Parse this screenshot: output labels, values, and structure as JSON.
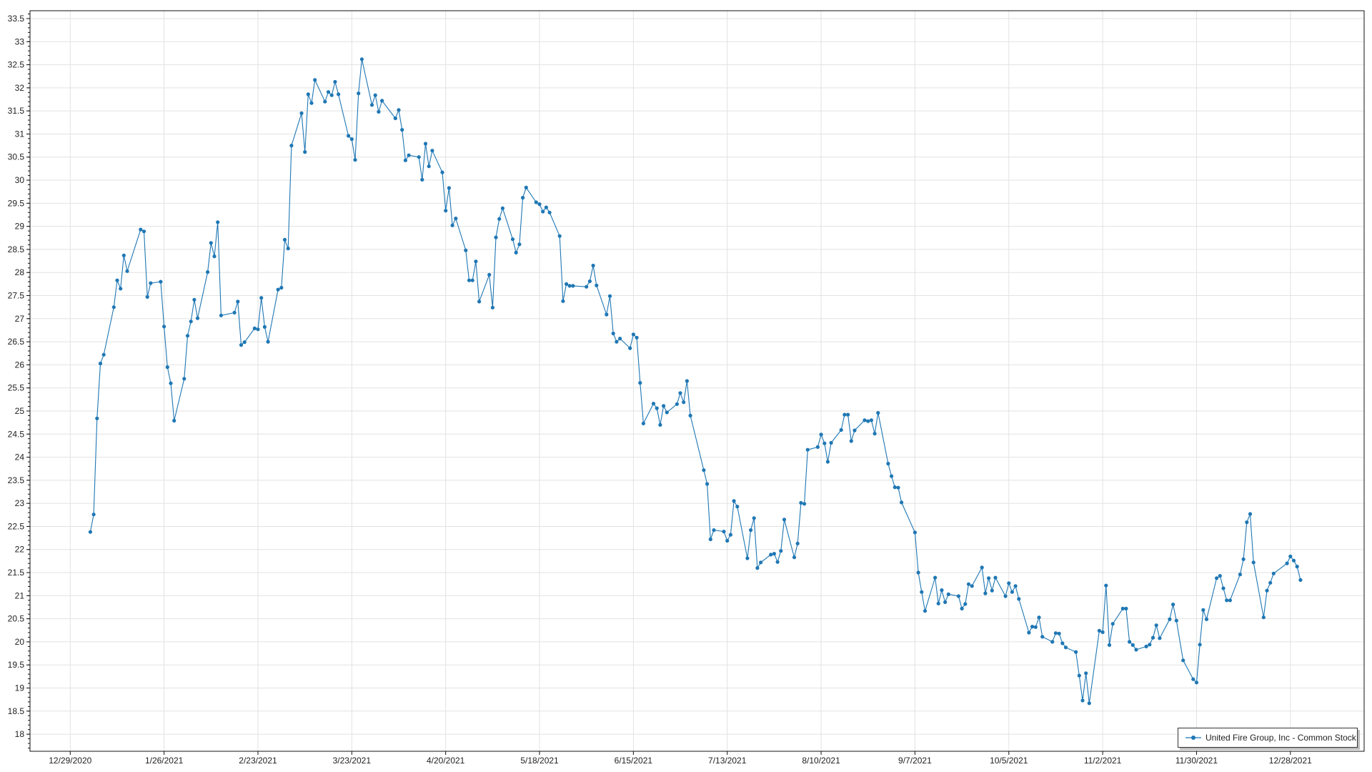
{
  "chart_data": {
    "type": "line",
    "title": "",
    "xlabel": "",
    "ylabel": "",
    "xlim": [
      "2020-12-17",
      "2022-01-19"
    ],
    "ylim": [
      17.63,
      33.67
    ],
    "grid": true,
    "legend_placement": "bottom-right",
    "line_color": "#1f77b4",
    "x_tick_labels": [
      "12/29/2020",
      "1/26/2021",
      "2/23/2021",
      "3/23/2021",
      "4/20/2021",
      "5/18/2021",
      "6/15/2021",
      "7/13/2021",
      "8/10/2021",
      "9/7/2021",
      "10/5/2021",
      "11/2/2021",
      "11/30/2021",
      "12/28/2021"
    ],
    "y_tick_labels": [
      "18",
      "18.5",
      "19",
      "19.5",
      "20",
      "20.5",
      "21",
      "21.5",
      "22",
      "22.5",
      "23",
      "23.5",
      "24",
      "24.5",
      "25",
      "25.5",
      "26",
      "26.5",
      "27",
      "27.5",
      "28",
      "28.5",
      "29",
      "29.5",
      "30",
      "30.5",
      "31",
      "31.5",
      "32",
      "32.5",
      "33",
      "33.5"
    ],
    "series": [
      {
        "name": "United Fire Group, Inc - Common Stock",
        "x": [
          "2021-01-04",
          "2021-01-05",
          "2021-01-06",
          "2021-01-07",
          "2021-01-08",
          "2021-01-11",
          "2021-01-12",
          "2021-01-13",
          "2021-01-14",
          "2021-01-15",
          "2021-01-19",
          "2021-01-20",
          "2021-01-21",
          "2021-01-22",
          "2021-01-25",
          "2021-01-26",
          "2021-01-27",
          "2021-01-28",
          "2021-01-29",
          "2021-02-01",
          "2021-02-02",
          "2021-02-03",
          "2021-02-04",
          "2021-02-05",
          "2021-02-08",
          "2021-02-09",
          "2021-02-10",
          "2021-02-11",
          "2021-02-12",
          "2021-02-16",
          "2021-02-17",
          "2021-02-18",
          "2021-02-19",
          "2021-02-22",
          "2021-02-23",
          "2021-02-24",
          "2021-02-25",
          "2021-02-26",
          "2021-03-01",
          "2021-03-02",
          "2021-03-03",
          "2021-03-04",
          "2021-03-05",
          "2021-03-08",
          "2021-03-09",
          "2021-03-10",
          "2021-03-11",
          "2021-03-12",
          "2021-03-15",
          "2021-03-16",
          "2021-03-17",
          "2021-03-18",
          "2021-03-19",
          "2021-03-22",
          "2021-03-23",
          "2021-03-24",
          "2021-03-25",
          "2021-03-26",
          "2021-03-29",
          "2021-03-30",
          "2021-03-31",
          "2021-04-01",
          "2021-04-05",
          "2021-04-06",
          "2021-04-07",
          "2021-04-08",
          "2021-04-09",
          "2021-04-12",
          "2021-04-13",
          "2021-04-14",
          "2021-04-15",
          "2021-04-16",
          "2021-04-19",
          "2021-04-20",
          "2021-04-21",
          "2021-04-22",
          "2021-04-23",
          "2021-04-26",
          "2021-04-27",
          "2021-04-28",
          "2021-04-29",
          "2021-04-30",
          "2021-05-03",
          "2021-05-04",
          "2021-05-05",
          "2021-05-06",
          "2021-05-07",
          "2021-05-10",
          "2021-05-11",
          "2021-05-12",
          "2021-05-13",
          "2021-05-14",
          "2021-05-17",
          "2021-05-18",
          "2021-05-19",
          "2021-05-20",
          "2021-05-21",
          "2021-05-24",
          "2021-05-25",
          "2021-05-26",
          "2021-05-27",
          "2021-05-28",
          "2021-06-01",
          "2021-06-02",
          "2021-06-03",
          "2021-06-04",
          "2021-06-07",
          "2021-06-08",
          "2021-06-09",
          "2021-06-10",
          "2021-06-11",
          "2021-06-14",
          "2021-06-15",
          "2021-06-16",
          "2021-06-17",
          "2021-06-18",
          "2021-06-21",
          "2021-06-22",
          "2021-06-23",
          "2021-06-24",
          "2021-06-25",
          "2021-06-28",
          "2021-06-29",
          "2021-06-30",
          "2021-07-01",
          "2021-07-02",
          "2021-07-06",
          "2021-07-07",
          "2021-07-08",
          "2021-07-09",
          "2021-07-12",
          "2021-07-13",
          "2021-07-14",
          "2021-07-15",
          "2021-07-16",
          "2021-07-19",
          "2021-07-20",
          "2021-07-21",
          "2021-07-22",
          "2021-07-23",
          "2021-07-26",
          "2021-07-27",
          "2021-07-28",
          "2021-07-29",
          "2021-07-30",
          "2021-08-02",
          "2021-08-03",
          "2021-08-04",
          "2021-08-05",
          "2021-08-06",
          "2021-08-09",
          "2021-08-10",
          "2021-08-11",
          "2021-08-12",
          "2021-08-13",
          "2021-08-16",
          "2021-08-17",
          "2021-08-18",
          "2021-08-19",
          "2021-08-20",
          "2021-08-23",
          "2021-08-24",
          "2021-08-25",
          "2021-08-26",
          "2021-08-27",
          "2021-08-30",
          "2021-08-31",
          "2021-09-01",
          "2021-09-02",
          "2021-09-03",
          "2021-09-07",
          "2021-09-08",
          "2021-09-09",
          "2021-09-10",
          "2021-09-13",
          "2021-09-14",
          "2021-09-15",
          "2021-09-16",
          "2021-09-17",
          "2021-09-20",
          "2021-09-21",
          "2021-09-22",
          "2021-09-23",
          "2021-09-24",
          "2021-09-27",
          "2021-09-28",
          "2021-09-29",
          "2021-09-30",
          "2021-10-01",
          "2021-10-04",
          "2021-10-05",
          "2021-10-06",
          "2021-10-07",
          "2021-10-08",
          "2021-10-11",
          "2021-10-12",
          "2021-10-13",
          "2021-10-14",
          "2021-10-15",
          "2021-10-18",
          "2021-10-19",
          "2021-10-20",
          "2021-10-21",
          "2021-10-22",
          "2021-10-25",
          "2021-10-26",
          "2021-10-27",
          "2021-10-28",
          "2021-10-29",
          "2021-11-01",
          "2021-11-02",
          "2021-11-03",
          "2021-11-04",
          "2021-11-05",
          "2021-11-08",
          "2021-11-09",
          "2021-11-10",
          "2021-11-11",
          "2021-11-12",
          "2021-11-15",
          "2021-11-16",
          "2021-11-17",
          "2021-11-18",
          "2021-11-19",
          "2021-11-22",
          "2021-11-23",
          "2021-11-24",
          "2021-11-26",
          "2021-11-29",
          "2021-11-30",
          "2021-12-01",
          "2021-12-02",
          "2021-12-03",
          "2021-12-06",
          "2021-12-07",
          "2021-12-08",
          "2021-12-09",
          "2021-12-10",
          "2021-12-13",
          "2021-12-14",
          "2021-12-15",
          "2021-12-16",
          "2021-12-17",
          "2021-12-20",
          "2021-12-21",
          "2021-12-22",
          "2021-12-23",
          "2021-12-27",
          "2021-12-28",
          "2021-12-29",
          "2021-12-30",
          "2021-12-31"
        ],
        "y": [
          22.38,
          22.76,
          24.84,
          26.03,
          26.22,
          27.25,
          27.83,
          27.65,
          28.37,
          28.03,
          28.93,
          28.89,
          27.47,
          27.77,
          27.8,
          26.83,
          25.95,
          25.6,
          24.79,
          25.7,
          26.63,
          26.94,
          27.41,
          27.01,
          28.01,
          28.64,
          28.35,
          29.09,
          27.07,
          27.13,
          27.37,
          26.43,
          26.49,
          26.79,
          26.77,
          27.45,
          26.82,
          26.5,
          27.63,
          27.67,
          28.71,
          28.52,
          30.75,
          31.45,
          30.61,
          31.86,
          31.67,
          32.17,
          31.7,
          31.91,
          31.84,
          32.13,
          31.86,
          30.96,
          30.89,
          30.44,
          31.88,
          32.62,
          31.63,
          31.84,
          31.48,
          31.72,
          31.34,
          31.52,
          31.09,
          30.43,
          30.54,
          30.5,
          30.01,
          30.79,
          30.3,
          30.64,
          30.17,
          29.34,
          29.83,
          29.02,
          29.17,
          28.48,
          27.83,
          27.83,
          28.24,
          27.37,
          27.95,
          27.24,
          28.76,
          29.16,
          29.39,
          28.72,
          28.43,
          28.61,
          29.62,
          29.84,
          29.52,
          29.48,
          29.32,
          29.41,
          29.3,
          28.79,
          27.38,
          27.75,
          27.71,
          27.71,
          27.69,
          27.81,
          28.15,
          27.72,
          27.09,
          27.49,
          26.68,
          26.5,
          26.57,
          26.36,
          26.66,
          26.59,
          25.61,
          24.73,
          25.16,
          25.06,
          24.7,
          25.11,
          24.97,
          25.15,
          25.39,
          25.19,
          25.65,
          24.9,
          23.72,
          23.42,
          22.22,
          22.42,
          22.39,
          22.19,
          22.32,
          23.05,
          22.93,
          21.81,
          22.42,
          22.68,
          21.6,
          21.72,
          21.89,
          21.91,
          21.73,
          21.97,
          22.65,
          21.83,
          22.13,
          23.01,
          22.99,
          24.16,
          24.22,
          24.49,
          24.3,
          23.9,
          24.31,
          24.59,
          24.92,
          24.92,
          24.35,
          24.58,
          24.8,
          24.78,
          24.8,
          24.51,
          24.96,
          23.86,
          23.59,
          23.35,
          23.34,
          23.02,
          22.37,
          21.5,
          21.08,
          20.67,
          21.39,
          20.83,
          21.12,
          20.86,
          21.03,
          20.99,
          20.72,
          20.82,
          21.25,
          21.21,
          21.61,
          21.05,
          21.38,
          21.11,
          21.39,
          20.99,
          21.27,
          21.08,
          21.21,
          20.93,
          20.2,
          20.33,
          20.32,
          20.53,
          20.11,
          20.0,
          20.19,
          20.18,
          19.97,
          19.88,
          19.78,
          19.27,
          18.73,
          19.32,
          18.67,
          20.24,
          20.21,
          21.22,
          19.93,
          20.39,
          20.72,
          20.72,
          20.0,
          19.93,
          19.83,
          19.9,
          19.94,
          20.09,
          20.36,
          20.08,
          20.49,
          20.81,
          20.46,
          19.6,
          19.19,
          19.12,
          19.94,
          20.69,
          20.49,
          21.38,
          21.43,
          21.16,
          20.9,
          20.9,
          21.46,
          21.79,
          22.59,
          22.77,
          21.72,
          20.53,
          21.11,
          21.28,
          21.48,
          21.7,
          21.85,
          21.76,
          21.63,
          21.34
        ]
      }
    ]
  }
}
